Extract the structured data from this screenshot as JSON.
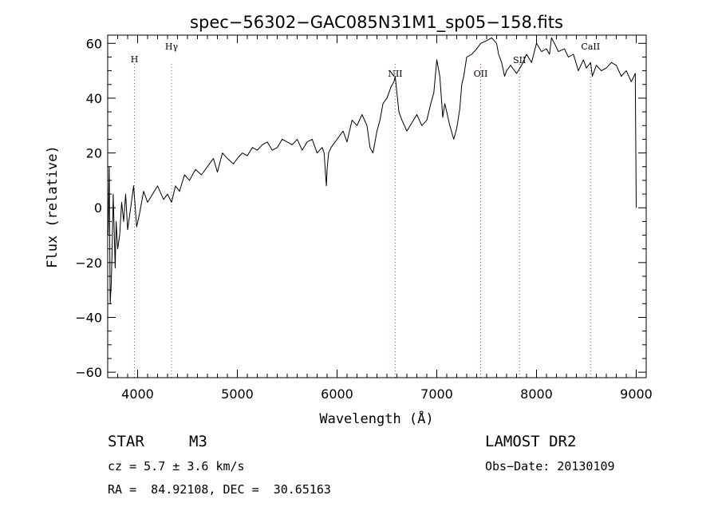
{
  "chart_data": {
    "type": "line",
    "title": "spec−56302−GAC085N31M1_sp05−158.fits",
    "xlabel": "Wavelength (Å)",
    "ylabel": "Flux (relative)",
    "xlim": [
      3700,
      9100
    ],
    "ylim": [
      -62,
      63
    ],
    "xticks": [
      4000,
      5000,
      6000,
      7000,
      8000,
      9000
    ],
    "yticks": [
      -60,
      -40,
      -20,
      0,
      20,
      40,
      60
    ],
    "tick_labels_y": [
      "−60",
      "−40",
      "−20",
      "0",
      "20",
      "40",
      "60"
    ],
    "grid": false,
    "line_color": "#000000",
    "marker_line_color": "#d04040",
    "lines": [
      {
        "label": "H",
        "x": 3968
      },
      {
        "label": "Hγ",
        "x": 4340
      },
      {
        "label": "NII",
        "x": 6583
      },
      {
        "label": "OII",
        "x": 7440
      },
      {
        "label": "SII",
        "x": 7830
      },
      {
        "label": "CaII",
        "x": 8542
      }
    ],
    "series": [
      {
        "x": [
          3705,
          3715,
          3725,
          3735,
          3745,
          3755,
          3765,
          3775,
          3785,
          3800,
          3820,
          3840,
          3860,
          3880,
          3900,
          3930,
          3960,
          3990,
          4020,
          4060,
          4100,
          4150,
          4200,
          4260,
          4300,
          4340,
          4380,
          4420,
          4470,
          4520,
          4580,
          4640,
          4700,
          4760,
          4800,
          4850,
          4900,
          4960,
          5000,
          5050,
          5100,
          5150,
          5200,
          5250,
          5300,
          5350,
          5400,
          5450,
          5500,
          5550,
          5600,
          5650,
          5700,
          5750,
          5800,
          5850,
          5870,
          5885,
          5893,
          5900,
          5915,
          5940,
          5980,
          6020,
          6060,
          6100,
          6150,
          6200,
          6250,
          6300,
          6330,
          6360,
          6400,
          6430,
          6460,
          6500,
          6540,
          6570,
          6583,
          6600,
          6620,
          6650,
          6700,
          6750,
          6800,
          6850,
          6900,
          6940,
          6970,
          7000,
          7030,
          7060,
          7080,
          7100,
          7130,
          7170,
          7200,
          7230,
          7250,
          7270,
          7300,
          7350,
          7400,
          7440,
          7500,
          7550,
          7600,
          7620,
          7650,
          7680,
          7700,
          7740,
          7800,
          7850,
          7900,
          7950,
          8000,
          8050,
          8100,
          8130,
          8150,
          8180,
          8220,
          8280,
          8320,
          8370,
          8420,
          8470,
          8500,
          8542,
          8560,
          8600,
          8650,
          8700,
          8750,
          8800,
          8850,
          8900,
          8950,
          8990,
          9000
        ],
        "y": [
          -10,
          15,
          -35,
          -28,
          -15,
          5,
          -8,
          -22,
          -5,
          -15,
          -10,
          2,
          -5,
          5,
          -8,
          0,
          8,
          -7,
          -2,
          6,
          2,
          5,
          8,
          3,
          5,
          2,
          8,
          6,
          12,
          10,
          14,
          12,
          15,
          18,
          13,
          20,
          18,
          16,
          18,
          20,
          19,
          22,
          21,
          23,
          24,
          21,
          22,
          25,
          24,
          23,
          25,
          21,
          24,
          25,
          20,
          22,
          20,
          12,
          8,
          14,
          20,
          22,
          24,
          26,
          28,
          24,
          32,
          30,
          34,
          30,
          22,
          20,
          28,
          32,
          38,
          40,
          44,
          46,
          48,
          42,
          35,
          32,
          28,
          31,
          34,
          30,
          32,
          38,
          42,
          54,
          48,
          33,
          38,
          35,
          30,
          25,
          29,
          36,
          45,
          48,
          55,
          56,
          58,
          60,
          61,
          62,
          60,
          56,
          53,
          48,
          50,
          52,
          49,
          52,
          56,
          53,
          60,
          57,
          58,
          56,
          62,
          60,
          57,
          58,
          55,
          56,
          50,
          54,
          51,
          53,
          48,
          52,
          50,
          51,
          53,
          52,
          48,
          50,
          46,
          49,
          0
        ]
      }
    ]
  },
  "info": {
    "object_class": "STAR",
    "subclass": "M3",
    "survey": "LAMOST DR2",
    "cz": "cz = 5.7 ± 3.6 km/s",
    "obs_date": "Obs−Date: 20130109",
    "radec": "RA =  84.92108, DEC =  30.65163"
  }
}
